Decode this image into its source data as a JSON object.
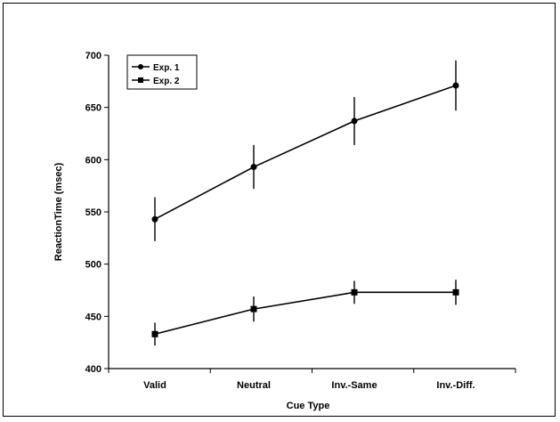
{
  "chart_data": {
    "type": "line",
    "title": "",
    "xlabel": "Cue Type",
    "ylabel": "ReactionTime (msec)",
    "categories": [
      "Valid",
      "Neutral",
      "Inv.-Same",
      "Inv.-Diff."
    ],
    "ylim": [
      400,
      700
    ],
    "yticks": [
      400,
      450,
      500,
      550,
      600,
      650,
      700
    ],
    "grid": false,
    "legend_position": "top-left",
    "series": [
      {
        "name": "Exp. 1",
        "marker": "circle",
        "color": "#000000",
        "values": [
          543,
          593,
          637,
          671
        ],
        "error": [
          21,
          21,
          23,
          24
        ]
      },
      {
        "name": "Exp. 2",
        "marker": "square",
        "color": "#000000",
        "values": [
          433,
          457,
          473,
          473
        ],
        "error": [
          11,
          12,
          11,
          12
        ]
      }
    ]
  }
}
